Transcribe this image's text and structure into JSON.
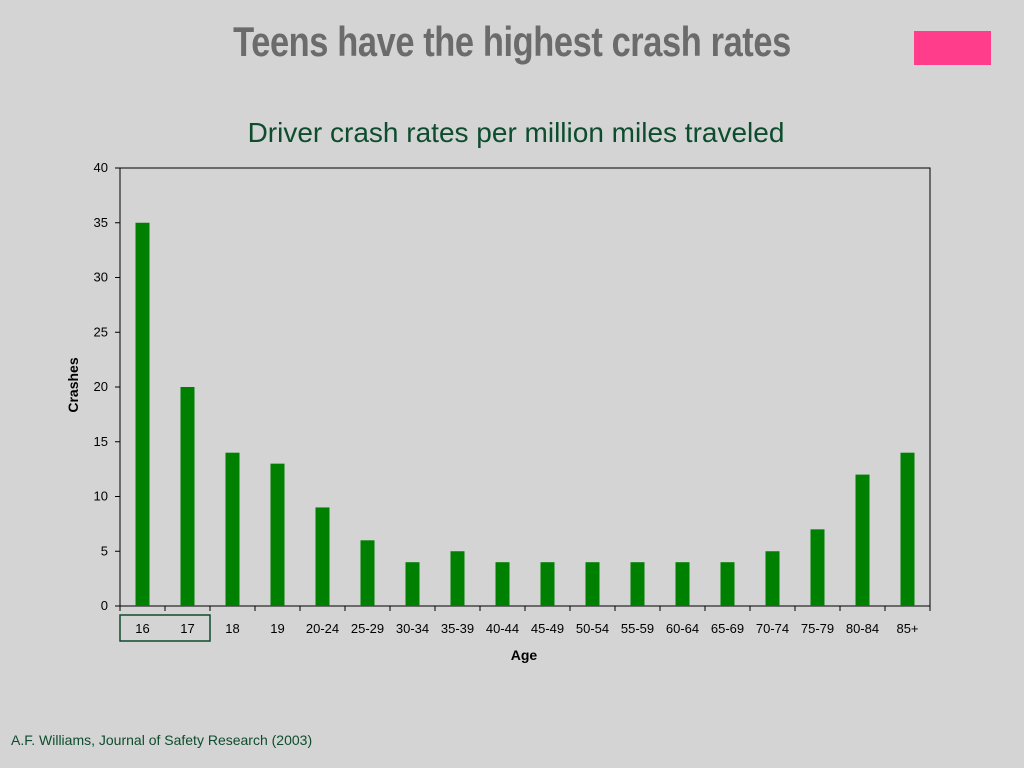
{
  "slide": {
    "title": "Teens have the highest crash rates",
    "citation": "A.F. Williams, Journal of Safety Research (2003)",
    "accent_color": "#ff3d8a"
  },
  "chart_data": {
    "type": "bar",
    "title": "Driver crash rates per million miles traveled",
    "xlabel": "Age",
    "ylabel": "Crashes",
    "ylim": [
      0,
      40
    ],
    "yticks": [
      0,
      5,
      10,
      15,
      20,
      25,
      30,
      35,
      40
    ],
    "categories": [
      "16",
      "17",
      "18",
      "19",
      "20-24",
      "25-29",
      "30-34",
      "35-39",
      "40-44",
      "45-49",
      "50-54",
      "55-59",
      "60-64",
      "65-69",
      "70-74",
      "75-79",
      "80-84",
      "85+"
    ],
    "values": [
      35,
      20,
      14,
      13,
      9,
      6,
      4,
      5,
      4,
      4,
      4,
      4,
      4,
      4,
      5,
      7,
      12,
      14
    ],
    "bar_color": "#008000",
    "highlighted_categories": [
      "16",
      "17"
    ],
    "grid": false,
    "legend": "none"
  }
}
